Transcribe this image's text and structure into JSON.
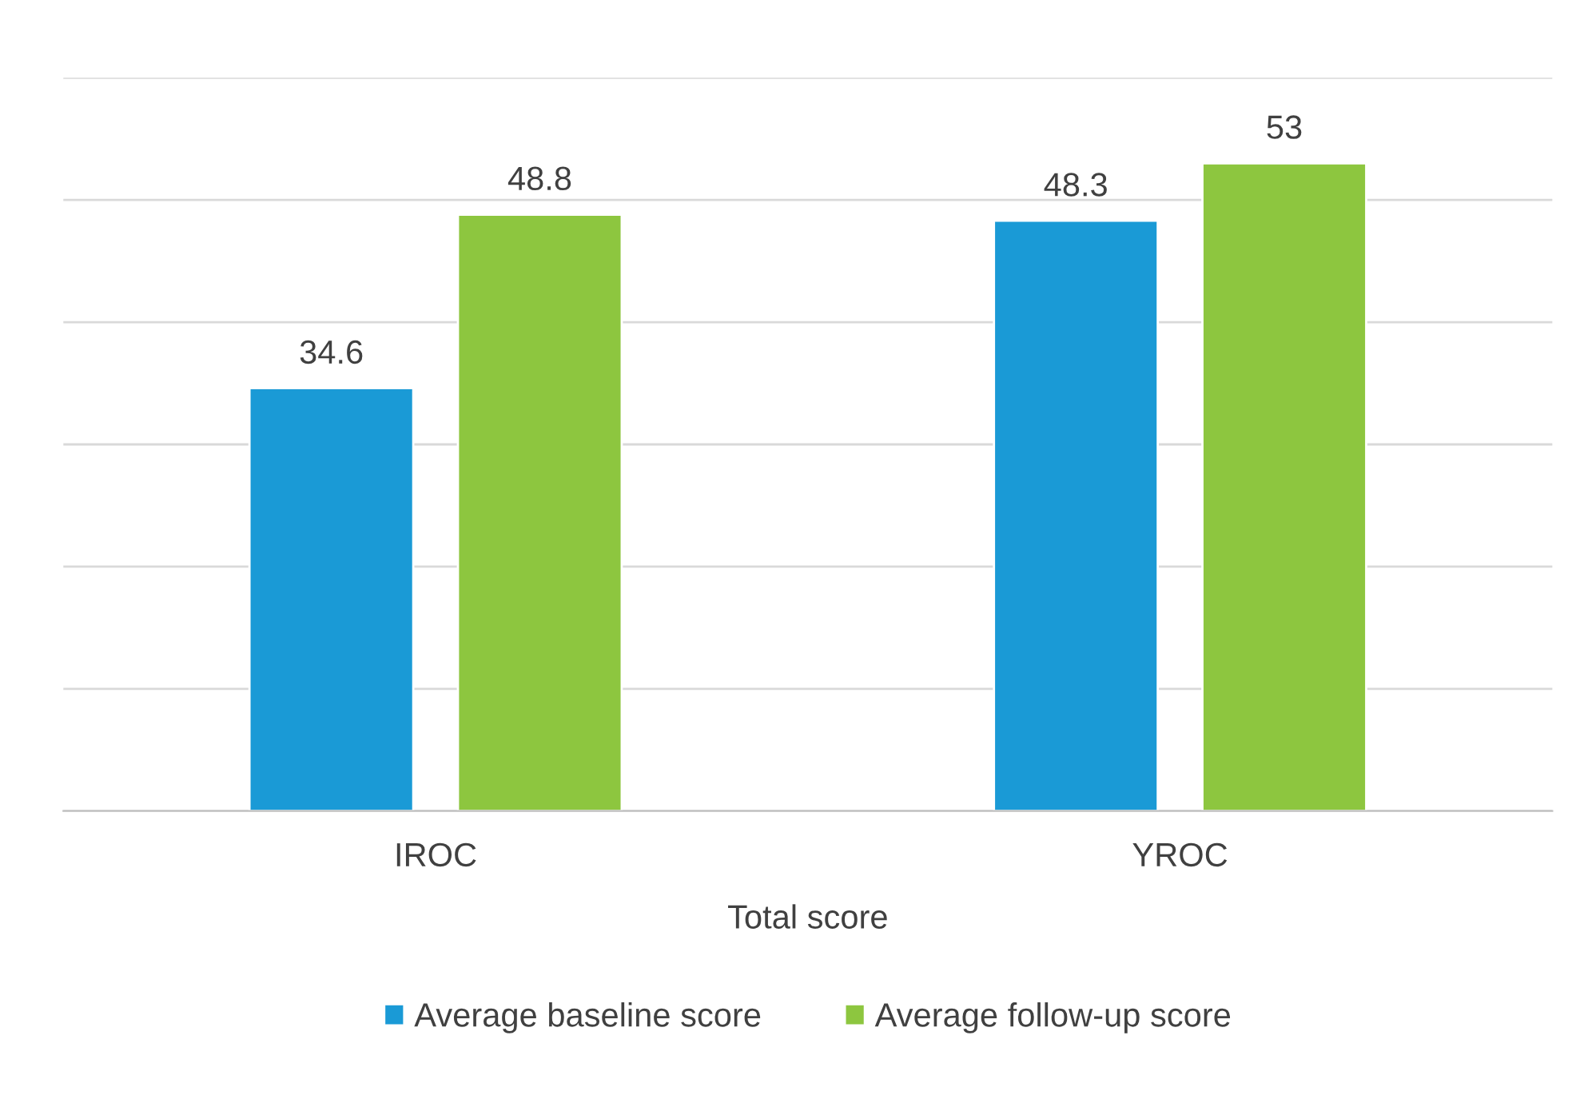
{
  "chart_data": {
    "type": "bar",
    "xlabel": "Total score",
    "categories": [
      "IROC",
      "YROC"
    ],
    "series": [
      {
        "name": "Average baseline score",
        "color": "#1a9ad6",
        "values": [
          34.6,
          48.3
        ]
      },
      {
        "name": "Average follow-up score",
        "color": "#8dc63f",
        "values": [
          48.8,
          53
        ]
      }
    ],
    "ylim": [
      0,
      60
    ],
    "yticks": [
      {
        "value": 0,
        "label": null
      },
      {
        "value": 10,
        "label": null
      },
      {
        "value": 20,
        "label": null
      },
      {
        "value": 30,
        "label": null
      },
      {
        "value": 40,
        "label": null
      },
      {
        "value": 50,
        "label": null
      },
      {
        "value": 60,
        "label": null
      }
    ],
    "tick_labels": "x",
    "grid": "y",
    "data_labels": true,
    "legend": "bottom"
  }
}
